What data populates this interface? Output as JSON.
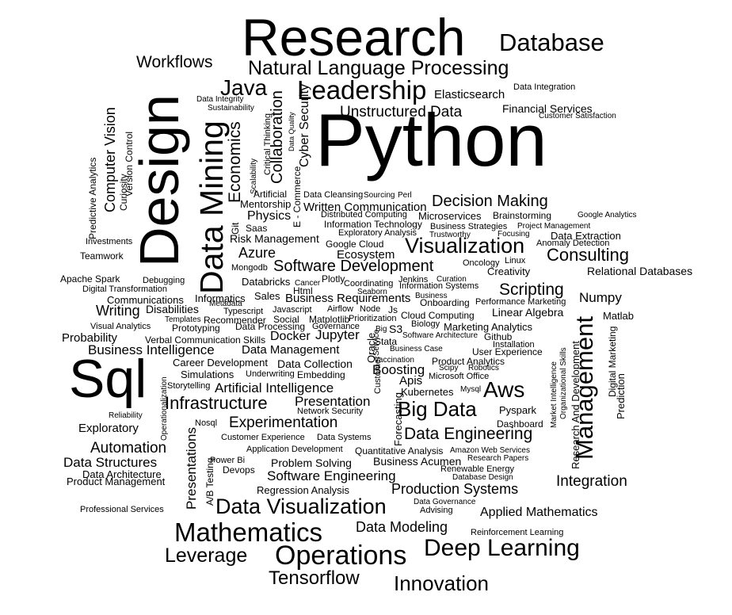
{
  "cloud": {
    "text_color": "#000000",
    "background": "#ffffff",
    "words": [
      "Research",
      "Database",
      "Workflows",
      "Natural Language Processing",
      "Java",
      "Leadership",
      "Elasticsearch",
      "Data Integration",
      "Unstructured Data",
      "Financial Services",
      "Customer Satisfaction",
      "Python",
      "Design",
      "Data Mining",
      "Economics",
      "Collaboration",
      "Cyber Security",
      "Data Quality",
      "Critical Thinking",
      "Scalability",
      "E - Commerce",
      "Computer Vision",
      "Version Control",
      "Curiosity",
      "Predictive Analytics",
      "Data Integrity",
      "Sustainability",
      "Artificial",
      "Mentorship",
      "Data Cleansing",
      "Sourcing",
      "Perl",
      "Decision Making",
      "Written Communication",
      "Git",
      "Physics",
      "Saas",
      "Distributed Computing",
      "Microservices",
      "Brainstorming",
      "Google Analytics",
      "Information Technology",
      "Business Strategies",
      "Project Management",
      "Exploratory Analysis",
      "Trustworthy",
      "Focusing",
      "Data Extraction",
      "Risk Management",
      "Visualization",
      "Anomaly Detection",
      "Google Cloud",
      "Investments",
      "Teamwork",
      "Azure",
      "Ecosystem",
      "Consulting",
      "Mongodb",
      "Software Development",
      "Oncology",
      "Linux",
      "Creativity",
      "Relational Databases",
      "Databricks",
      "Plotly",
      "Cancer",
      "Jenkins",
      "Curation",
      "Apache Spark",
      "Debugging",
      "Html",
      "Coordinating",
      "Information Systems",
      "Digital Transformation",
      "Seaborn",
      "Scripting",
      "Informatics",
      "Sales",
      "Business",
      "Communications",
      "Business Requirements",
      "Numpy",
      "Onboarding",
      "Performance Marketing",
      "Writing",
      "Disabilities",
      "Metadata",
      "Javascript",
      "Airflow",
      "Node",
      "Js",
      "Typescript",
      "Linear Algebra",
      "Matlab",
      "Cloud Computing",
      "Templates",
      "Recommender",
      "Social",
      "Matplotlib",
      "Prioritization",
      "Visual Analytics",
      "Prototyping",
      "Governance",
      "Biology",
      "Marketing Analytics",
      "Data Processing",
      "Big",
      "S3",
      "Probability",
      "Verbal Communication Skills",
      "Docker",
      "Jupyter",
      "Software Architecture",
      "Github",
      "Stata",
      "Oracle",
      "Service",
      "Installation",
      "Business Intelligence",
      "Data Management",
      "Business Case",
      "User Experience",
      "Vaccination",
      "Career Development",
      "Data Collection",
      "Product Analytics",
      "Sql",
      "Boosting",
      "Scipy",
      "Robotics",
      "Simulations",
      "Underwriting",
      "Embedding",
      "Microsoft Office",
      "Customer",
      "Storytelling",
      "Artificial Intelligence",
      "Apis",
      "Aws",
      "Kubernetes",
      "Mysql",
      "Operationalization",
      "Infrastructure",
      "Presentation",
      "Network Security",
      "Forecasting",
      "Big Data",
      "Pyspark",
      "Reliability",
      "Nosql",
      "Experimentation",
      "Dashboard",
      "Exploratory",
      "Customer Experience",
      "Data Systems",
      "Data Engineering",
      "Management",
      "Market Intelligence",
      "Organizational Skills",
      "Research And Development",
      "Digital Marketing",
      "Prediction",
      "Presentations",
      "Automation",
      "Application Development",
      "Quantitative Analysis",
      "Amazon Web Services",
      "A/B Testing",
      "Power Bi",
      "Data Structures",
      "Problem Solving",
      "Business Acumen",
      "Research Papers",
      "Devops",
      "Renewable Energy",
      "Data Architecture",
      "Product Management",
      "Software Engineering",
      "Database Design",
      "Integration",
      "Regression Analysis",
      "Production Systems",
      "Data Governance",
      "Advising",
      "Professional Services",
      "Data Visualization",
      "Applied Mathematics",
      "Mathematics",
      "Data Modeling",
      "Reinforcement Learning",
      "Deep Learning",
      "Leverage",
      "Operations",
      "Tensorflow",
      "Innovation"
    ]
  }
}
